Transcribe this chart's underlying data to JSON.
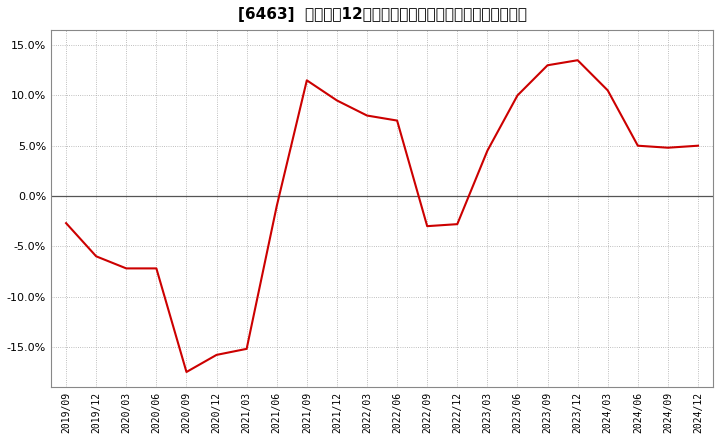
{
  "title": "[6463]  売上高の12か月移動合計の対前年同期増減率の推移",
  "line_color": "#cc0000",
  "background_color": "#ffffff",
  "plot_bg_color": "#ffffff",
  "grid_color": "#aaaaaa",
  "zero_line_color": "#555555",
  "ylim": [
    -0.19,
    0.165
  ],
  "yticks": [
    -0.15,
    -0.1,
    -0.05,
    0.0,
    0.05,
    0.1,
    0.15
  ],
  "dates": [
    "2019/09",
    "2019/12",
    "2020/03",
    "2020/06",
    "2020/09",
    "2020/12",
    "2021/03",
    "2021/06",
    "2021/09",
    "2021/12",
    "2022/03",
    "2022/06",
    "2022/09",
    "2022/12",
    "2023/03",
    "2023/06",
    "2023/09",
    "2023/12",
    "2024/03",
    "2024/06",
    "2024/09",
    "2024/12"
  ],
  "values": [
    -0.027,
    -0.06,
    -0.072,
    -0.072,
    -0.175,
    -0.158,
    -0.152,
    -0.01,
    0.115,
    0.095,
    0.08,
    0.075,
    -0.03,
    -0.028,
    0.045,
    0.1,
    0.13,
    0.135,
    0.105,
    0.05,
    0.048,
    0.05
  ],
  "title_fontsize": 11,
  "tick_fontsize": 8,
  "xtick_fontsize": 7
}
